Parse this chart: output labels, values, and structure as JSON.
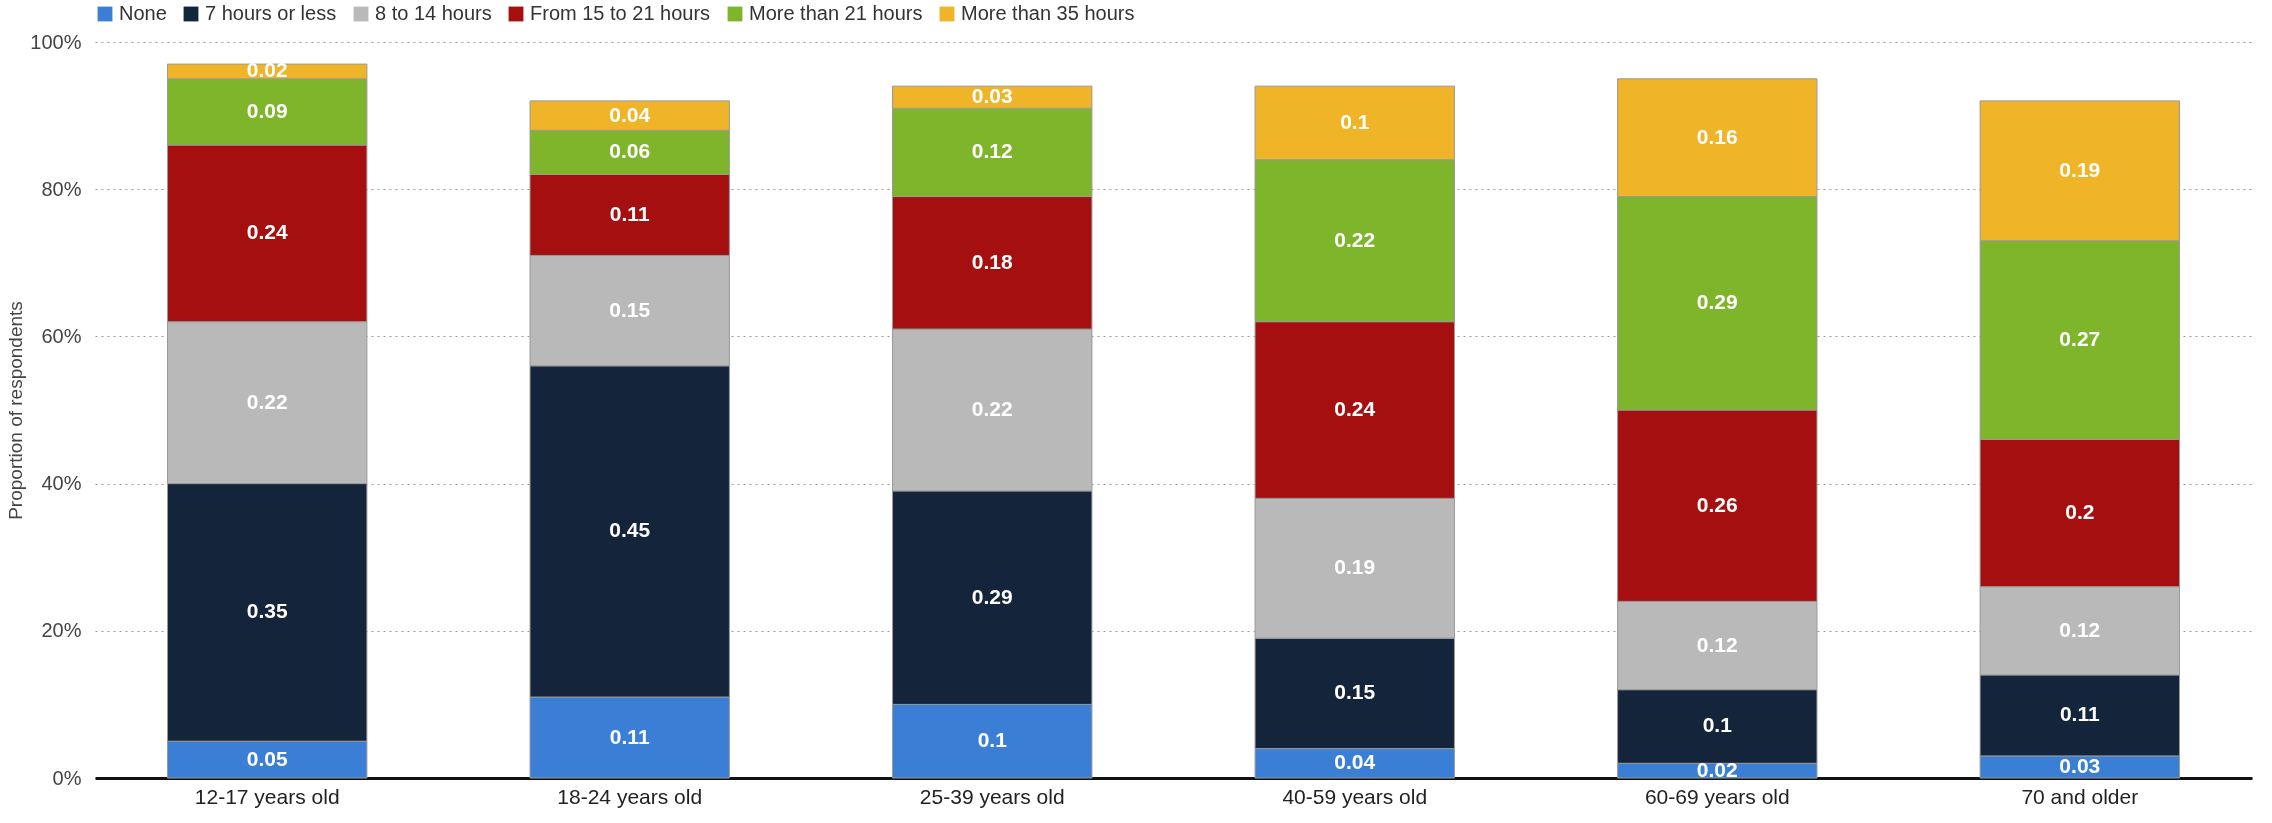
{
  "chart_data": {
    "type": "bar",
    "stacked": true,
    "ylabel": "Proportion of respondents",
    "categories": [
      "12-17 years old",
      "18-24 years old",
      "25-39 years old",
      "40-59 years old",
      "60-69 years old",
      "70 and older"
    ],
    "series": [
      {
        "name": "None",
        "color": "#3a7fd5",
        "values": [
          0.05,
          0.11,
          0.1,
          0.04,
          0.02,
          0.03
        ]
      },
      {
        "name": "7 hours or less",
        "color": "#14243a",
        "values": [
          0.35,
          0.45,
          0.29,
          0.15,
          0.1,
          0.11
        ]
      },
      {
        "name": "8 to 14 hours",
        "color": "#b9b9b9",
        "values": [
          0.22,
          0.15,
          0.22,
          0.19,
          0.12,
          0.12
        ]
      },
      {
        "name": "From 15 to 21 hours",
        "color": "#a50f0f",
        "values": [
          0.24,
          0.11,
          0.18,
          0.24,
          0.26,
          0.2
        ]
      },
      {
        "name": "More than 21 hours",
        "color": "#7fb52a",
        "values": [
          0.09,
          0.06,
          0.12,
          0.22,
          0.29,
          0.27
        ]
      },
      {
        "name": "More than 35 hours",
        "color": "#f0b429",
        "values": [
          0.02,
          0.04,
          0.03,
          0.1,
          0.16,
          0.19
        ]
      }
    ],
    "ylim": [
      0,
      1
    ],
    "yticks": [
      {
        "value": 0,
        "label": "0%"
      },
      {
        "value": 0.2,
        "label": "20%"
      },
      {
        "value": 0.4,
        "label": "40%"
      },
      {
        "value": 0.6,
        "label": "60%"
      },
      {
        "value": 0.8,
        "label": "80%"
      },
      {
        "value": 1,
        "label": "100%"
      }
    ],
    "grid": "y",
    "legend": "top",
    "data_labels": true
  }
}
